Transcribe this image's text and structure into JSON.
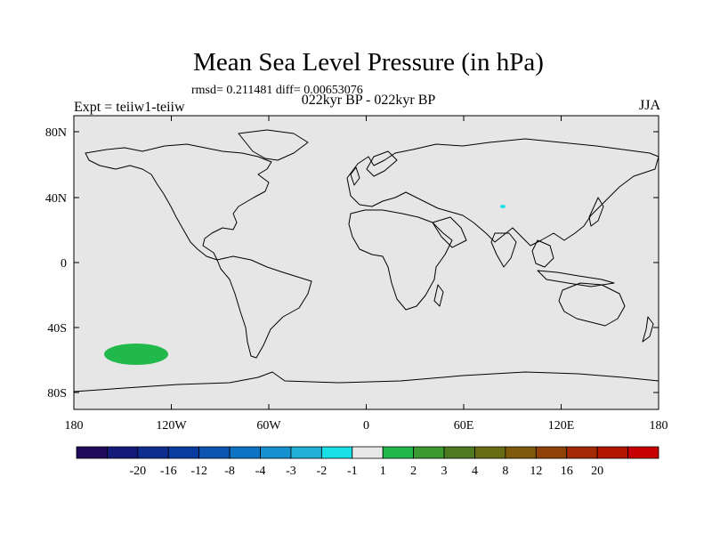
{
  "title": "Mean Sea Level Pressure (in hPa)",
  "stats_line": "rmsd= 0.211481 diff= 0.00653076",
  "center_string": "022kyr BP - 022kyr BP",
  "left_string": "Expt = teiiw1-teiiw",
  "right_string": "JJA",
  "lat_ticks": [
    "80N",
    "40N",
    "0",
    "40S",
    "80S"
  ],
  "lon_ticks": [
    "180",
    "120W",
    "60W",
    "0",
    "60E",
    "120E",
    "180"
  ],
  "colorbar": {
    "labels": [
      "-20",
      "-16",
      "-12",
      "-8",
      "-4",
      "-3",
      "-2",
      "-1",
      "1",
      "2",
      "3",
      "4",
      "8",
      "12",
      "16",
      "20"
    ],
    "colors": [
      "#1f0a5c",
      "#141a7a",
      "#0f2d8f",
      "#0a3c9f",
      "#0d55b0",
      "#0f73c4",
      "#1591cf",
      "#1fb0d8",
      "#19dfe6",
      "#e8e8e8",
      "#21b84c",
      "#3d9a33",
      "#4f7a22",
      "#6a6b15",
      "#7f5a0a",
      "#8e4208",
      "#a32a05",
      "#b31503",
      "#c80000"
    ]
  },
  "colors": {
    "ocean_background": "#e6e6e6",
    "positive_anomaly": "#21b84c",
    "small_anomaly": "#19dfe6"
  }
}
